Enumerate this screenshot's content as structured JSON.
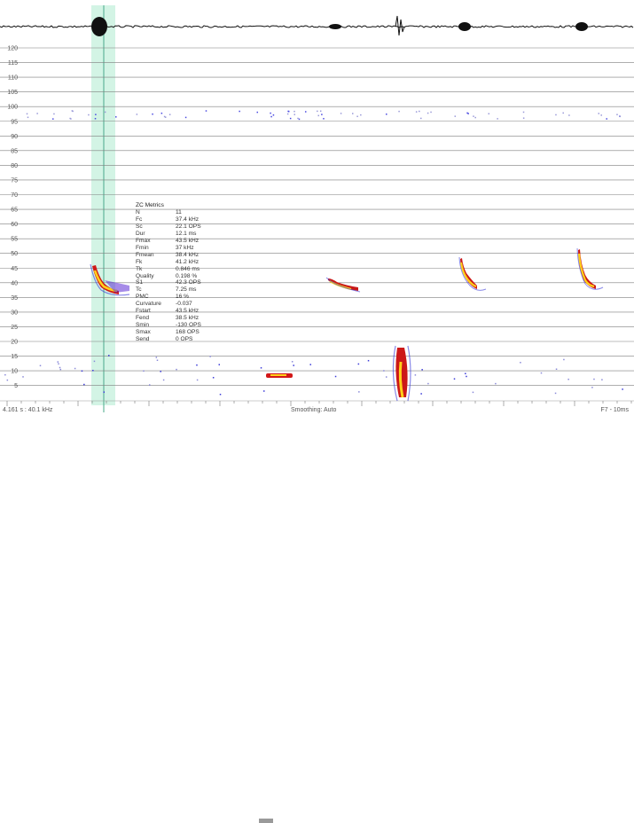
{
  "y_axis": {
    "ticks": [
      "120",
      "115",
      "110",
      "105",
      "100",
      "95",
      "90",
      "85",
      "80",
      "75",
      "70",
      "65",
      "60",
      "55",
      "50",
      "45",
      "40",
      "35",
      "30",
      "25",
      "20",
      "15",
      "10",
      "5"
    ]
  },
  "metrics_panel": {
    "title": "ZC Metrics",
    "rows": [
      {
        "key": "N",
        "value": "11"
      },
      {
        "key": "Fc",
        "value": "37.4 kHz"
      },
      {
        "key": "Sc",
        "value": "22.1 OPS"
      },
      {
        "key": "Dur",
        "value": "12.1 ms"
      },
      {
        "key": "Fmax",
        "value": "43.5 kHz"
      },
      {
        "key": "Fmin",
        "value": "37 kHz"
      },
      {
        "key": "Fmean",
        "value": "38.4 kHz"
      },
      {
        "key": "Fk",
        "value": "41.2 kHz"
      },
      {
        "key": "Tk",
        "value": "0.846 ms"
      },
      {
        "key": "Quality",
        "value": "0.198 %"
      },
      {
        "key": "S1",
        "value": "42.3 OPS"
      },
      {
        "key": "Tc",
        "value": "7.25 ms"
      },
      {
        "key": "PMC",
        "value": "16 %"
      },
      {
        "key": "Curvature",
        "value": "-0.037"
      },
      {
        "key": "Fstart",
        "value": "43.5 kHz"
      },
      {
        "key": "Fend",
        "value": "38.5 kHz"
      },
      {
        "key": "Smin",
        "value": "-130 OPS"
      },
      {
        "key": "Smax",
        "value": "168 OPS"
      },
      {
        "key": "Send",
        "value": "0 OPS"
      }
    ]
  },
  "status_bar": {
    "position": "4.161 s : 40.1 kHz",
    "smoothing": "Smoothing: Auto",
    "zoom": "F7 - 10ms"
  },
  "colors": {
    "gridline": "#7f7f7f",
    "selection_fill": "#c4f0dc",
    "selection_border": "#4aa88a",
    "waveform": "#111111",
    "call_dot_low": "#2222cc",
    "call_dot_high": "#ffd000"
  }
}
